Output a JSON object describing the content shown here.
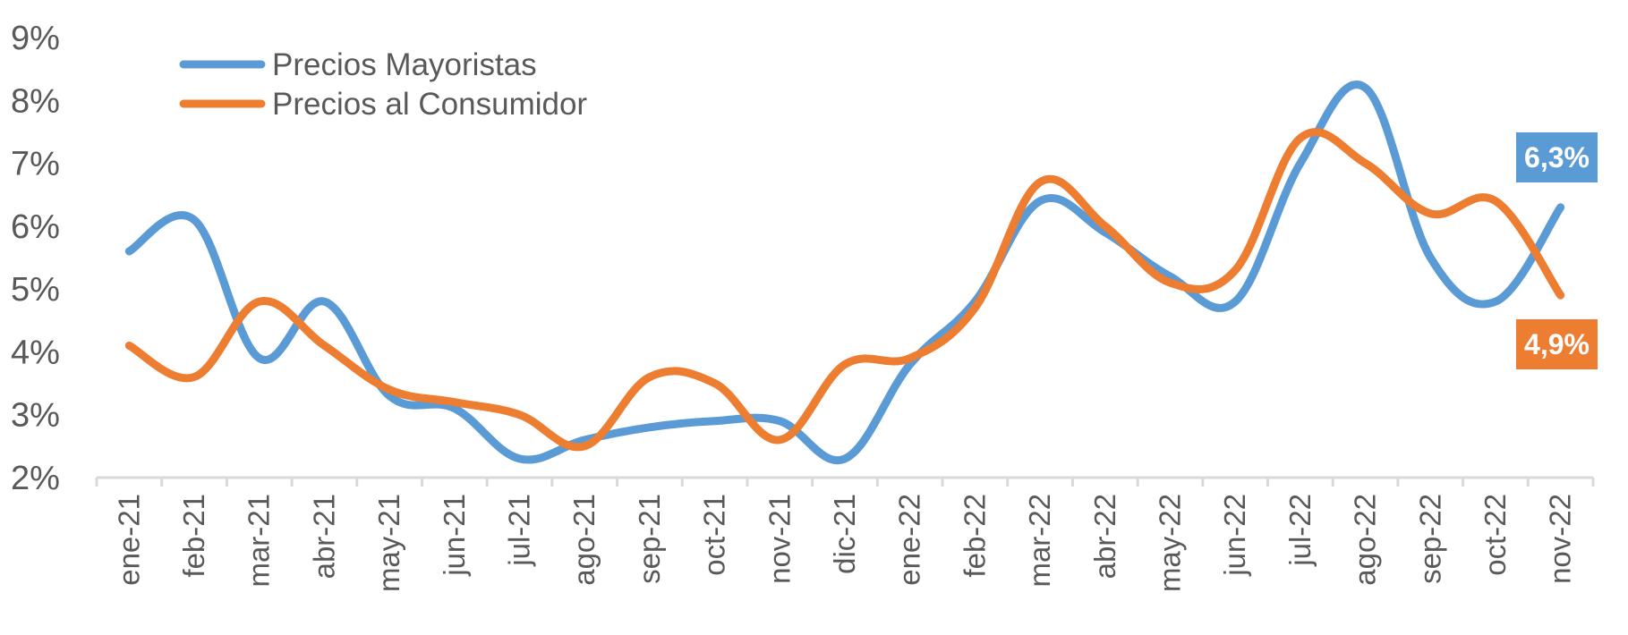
{
  "chart_data": {
    "type": "line",
    "categories": [
      "ene-21",
      "feb-21",
      "mar-21",
      "abr-21",
      "may-21",
      "jun-21",
      "jul-21",
      "ago-21",
      "sep-21",
      "oct-21",
      "nov-21",
      "dic-21",
      "ene-22",
      "feb-22",
      "mar-22",
      "abr-22",
      "may-22",
      "jun-22",
      "jul-22",
      "ago-22",
      "sep-22",
      "oct-22",
      "nov-22"
    ],
    "y_ticks": [
      "2%",
      "3%",
      "4%",
      "5%",
      "6%",
      "7%",
      "8%",
      "9%"
    ],
    "ylim": [
      2,
      9
    ],
    "grid": false,
    "legend_position": "top-left",
    "series": [
      {
        "name": "Precios Mayoristas",
        "color": "#5b9bd5",
        "values": [
          5.6,
          6.1,
          3.9,
          4.8,
          3.3,
          3.1,
          2.3,
          2.6,
          2.8,
          2.9,
          2.9,
          2.3,
          3.8,
          4.8,
          6.4,
          5.9,
          5.2,
          4.8,
          7.0,
          8.2,
          5.5,
          4.8,
          6.3
        ],
        "callout": "6,3%"
      },
      {
        "name": "Precios al Consumidor",
        "color": "#ed7d31",
        "values": [
          4.1,
          3.6,
          4.8,
          4.1,
          3.4,
          3.2,
          3.0,
          2.5,
          3.6,
          3.5,
          2.6,
          3.8,
          3.9,
          4.7,
          6.7,
          6.0,
          5.1,
          5.3,
          7.4,
          7.0,
          6.2,
          6.4,
          4.9
        ],
        "callout": "4,9%"
      }
    ]
  }
}
